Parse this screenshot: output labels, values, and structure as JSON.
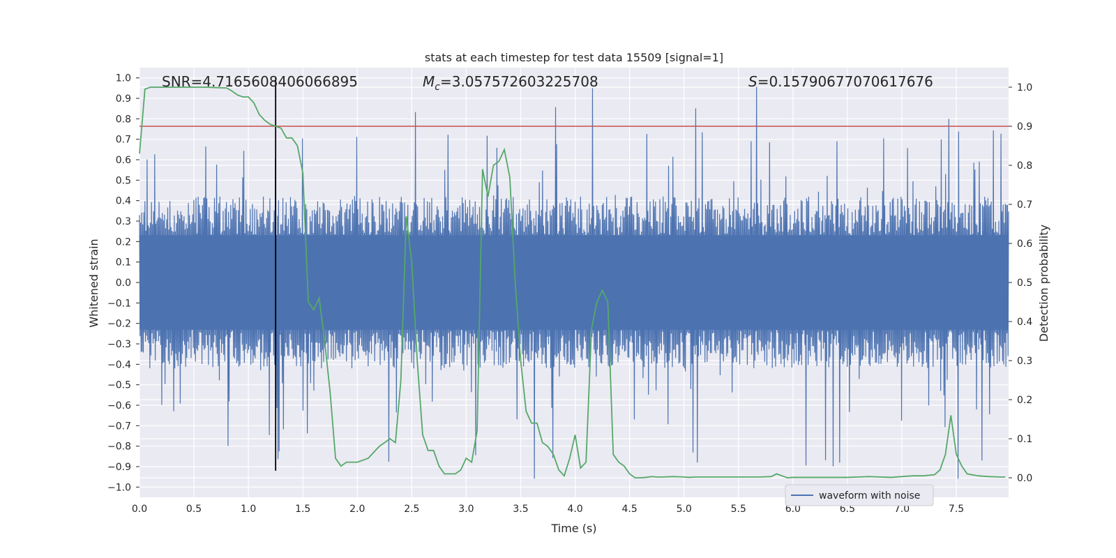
{
  "chart_data": {
    "type": "line",
    "title": "stats at each timestep for test data 15509 [signal=1]",
    "xlabel": "Time (s)",
    "ylabel_left": "Whitened strain",
    "ylabel_right": "Detection probability",
    "xlim": [
      0.0,
      7.98
    ],
    "ylim_left": [
      -1.05,
      1.05
    ],
    "ylim_right": [
      -0.05,
      1.05
    ],
    "x_ticks": [
      0.0,
      0.5,
      1.0,
      1.5,
      2.0,
      2.5,
      3.0,
      3.5,
      4.0,
      4.5,
      5.0,
      5.5,
      6.0,
      6.5,
      7.0,
      7.5
    ],
    "x_tick_labels": [
      "0.0",
      "0.5",
      "1.0",
      "1.5",
      "2.0",
      "2.5",
      "3.0",
      "3.5",
      "4.0",
      "4.5",
      "5.0",
      "5.5",
      "6.0",
      "6.5",
      "7.0",
      "7.5"
    ],
    "y_left_ticks": [
      1.0,
      0.9,
      0.8,
      0.7,
      0.6,
      0.5,
      0.4,
      0.3,
      0.2,
      0.1,
      0.0,
      -0.1,
      -0.2,
      -0.3,
      -0.4,
      -0.5,
      -0.6,
      -0.7,
      -0.8,
      -0.9,
      -1.0
    ],
    "y_left_tick_labels": [
      "1.0",
      "0.9",
      "0.8",
      "0.7",
      "0.6",
      "0.5",
      "0.4",
      "0.3",
      "0.2",
      "0.1",
      "0.0",
      "−0.1",
      "−0.2",
      "−0.3",
      "−0.4",
      "−0.5",
      "−0.6",
      "−0.7",
      "−0.8",
      "−0.9",
      "−1.0"
    ],
    "y_right_ticks": [
      1.0,
      0.9,
      0.8,
      0.7,
      0.6,
      0.5,
      0.4,
      0.3,
      0.2,
      0.1,
      0.0
    ],
    "y_right_tick_labels": [
      "1.0",
      "0.9",
      "0.8",
      "0.7",
      "0.6",
      "0.5",
      "0.4",
      "0.3",
      "0.2",
      "0.1",
      "0.0"
    ],
    "annotations": {
      "snr": "SNR=4.7165608406066895",
      "mc_symbol": "M",
      "mc_subscript": "c",
      "mc_value": "=3.057572603225708",
      "s_symbol": "S",
      "s_value": "=0.15790677070617676"
    },
    "threshold_probability": 0.9,
    "marker_time": 1.25,
    "legend": {
      "label": "waveform with noise",
      "location": "lower-right"
    },
    "series": [
      {
        "name": "waveform with noise",
        "axis": "left",
        "color": "#4c72b0",
        "envelope": {
          "typical_abs": 0.42,
          "peak_abs": 0.97,
          "description": "dense noisy strain filling approx. ±0.45 with spikes to ±0.9"
        }
      },
      {
        "name": "detection probability",
        "axis": "right",
        "color": "#55a868",
        "x": [
          0.0,
          0.05,
          0.1,
          0.15,
          0.2,
          0.3,
          0.4,
          0.5,
          0.6,
          0.7,
          0.8,
          0.85,
          0.9,
          0.95,
          1.0,
          1.05,
          1.1,
          1.15,
          1.2,
          1.25,
          1.3,
          1.35,
          1.4,
          1.45,
          1.5,
          1.55,
          1.6,
          1.65,
          1.7,
          1.75,
          1.8,
          1.85,
          1.9,
          1.95,
          2.0,
          2.05,
          2.1,
          2.2,
          2.3,
          2.35,
          2.4,
          2.45,
          2.5,
          2.55,
          2.6,
          2.65,
          2.7,
          2.75,
          2.8,
          2.85,
          2.9,
          2.95,
          3.0,
          3.05,
          3.1,
          3.15,
          3.2,
          3.25,
          3.3,
          3.35,
          3.4,
          3.45,
          3.5,
          3.55,
          3.6,
          3.65,
          3.7,
          3.75,
          3.8,
          3.85,
          3.9,
          3.95,
          4.0,
          4.05,
          4.1,
          4.15,
          4.2,
          4.25,
          4.3,
          4.35,
          4.4,
          4.45,
          4.5,
          4.55,
          4.6,
          4.65,
          4.7,
          4.75,
          4.8,
          4.9,
          5.0,
          5.05,
          5.1,
          5.2,
          5.3,
          5.4,
          5.5,
          5.6,
          5.7,
          5.8,
          5.85,
          5.9,
          5.95,
          6.0,
          6.05,
          6.1,
          6.2,
          6.3,
          6.4,
          6.5,
          6.6,
          6.7,
          6.8,
          6.9,
          7.0,
          7.1,
          7.2,
          7.3,
          7.35,
          7.4,
          7.45,
          7.5,
          7.55,
          7.6,
          7.7,
          7.8,
          7.9,
          7.95
        ],
        "values": [
          0.83,
          0.995,
          1.0,
          1.0,
          1.0,
          1.0,
          1.0,
          1.0,
          1.0,
          0.999,
          0.998,
          0.99,
          0.98,
          0.975,
          0.975,
          0.96,
          0.93,
          0.915,
          0.905,
          0.9,
          0.895,
          0.87,
          0.87,
          0.85,
          0.78,
          0.45,
          0.43,
          0.46,
          0.35,
          0.22,
          0.05,
          0.03,
          0.04,
          0.04,
          0.04,
          0.045,
          0.05,
          0.08,
          0.1,
          0.09,
          0.25,
          0.67,
          0.55,
          0.3,
          0.11,
          0.07,
          0.07,
          0.03,
          0.01,
          0.01,
          0.01,
          0.02,
          0.05,
          0.04,
          0.12,
          0.79,
          0.72,
          0.8,
          0.81,
          0.84,
          0.77,
          0.5,
          0.3,
          0.17,
          0.14,
          0.14,
          0.09,
          0.08,
          0.06,
          0.02,
          0.005,
          0.05,
          0.11,
          0.025,
          0.04,
          0.38,
          0.45,
          0.48,
          0.45,
          0.06,
          0.04,
          0.03,
          0.01,
          0.0,
          0.0,
          0.001,
          0.003,
          0.002,
          0.002,
          0.003,
          0.002,
          0.001,
          0.002,
          0.002,
          0.002,
          0.002,
          0.002,
          0.002,
          0.002,
          0.003,
          0.01,
          0.005,
          0.0,
          0.001,
          0.001,
          0.001,
          0.001,
          0.001,
          0.001,
          0.001,
          0.002,
          0.003,
          0.002,
          0.001,
          0.003,
          0.005,
          0.005,
          0.008,
          0.02,
          0.06,
          0.16,
          0.06,
          0.03,
          0.01,
          0.005,
          0.003,
          0.002,
          0.002
        ]
      }
    ]
  }
}
